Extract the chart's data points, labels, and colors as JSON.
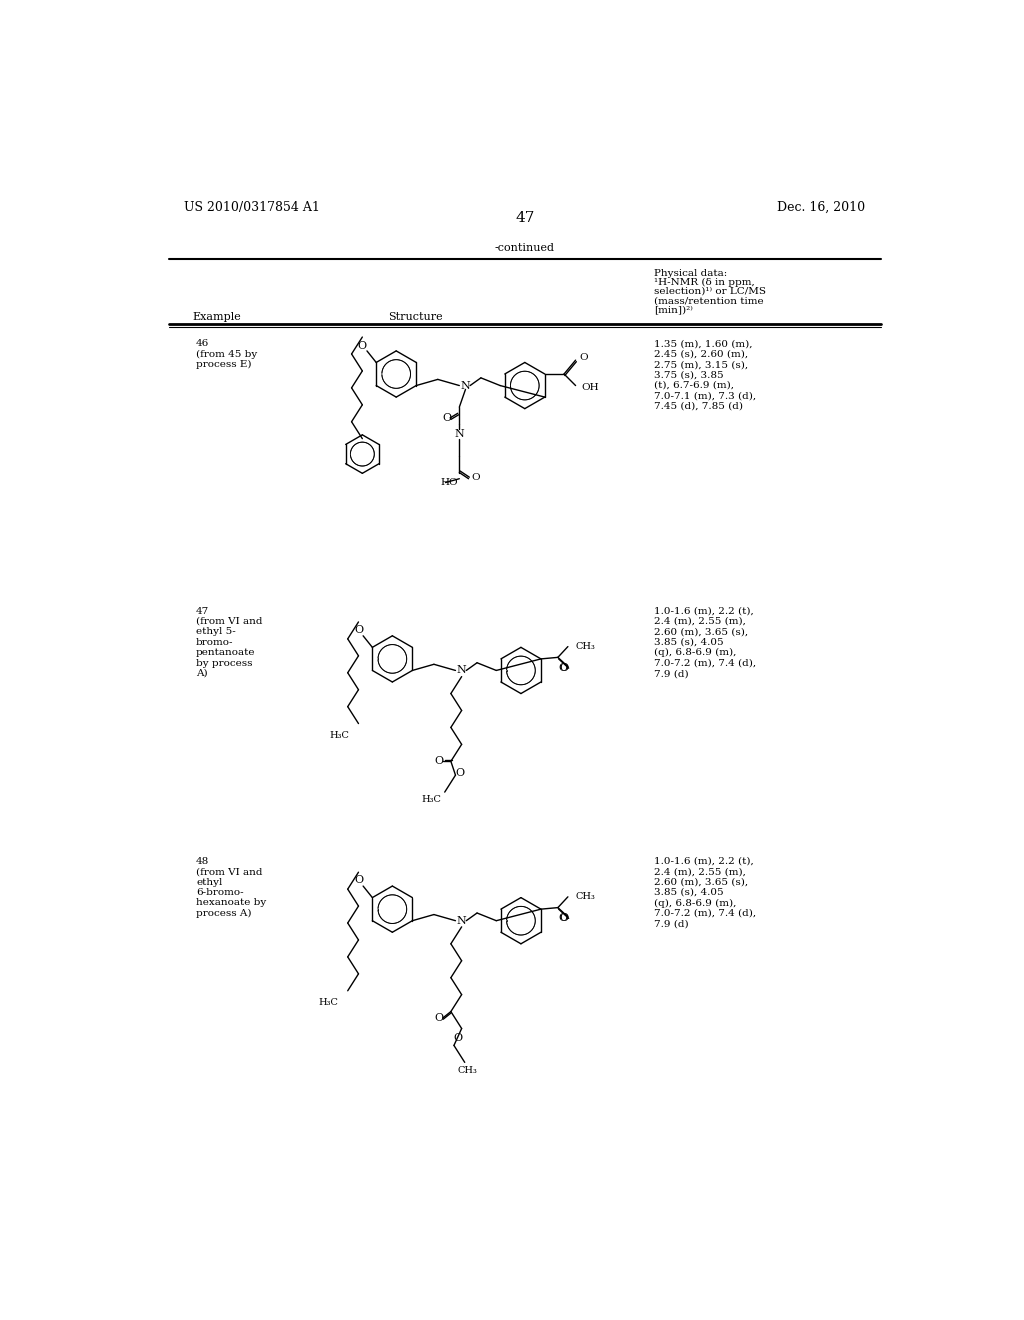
{
  "page_header_left": "US 2010/0317854 A1",
  "page_header_right": "Dec. 16, 2010",
  "page_number": "47",
  "continued_label": "-continued",
  "background_color": "#ffffff",
  "text_color": "#000000",
  "table_header": {
    "col1": "Example",
    "col2": "Structure",
    "col3_line1": "Physical data:",
    "col3_line2": "1H-NMR (δ in ppm,",
    "col3_line3": "selection)1) or LC/MS",
    "col3_line4": "(mass/retention time",
    "col3_line5": "[min])2)"
  },
  "rows": [
    {
      "example": "46\n(from 45 by\nprocess E)",
      "nmr": "1.35 (m), 1.60 (m),\n2.45 (s), 2.60 (m),\n2.75 (m), 3.15 (s),\n3.75 (s), 3.85\n(t), 6.7-6.9 (m),\n7.0-7.1 (m), 7.3 (d),\n7.45 (d), 7.85 (d)"
    },
    {
      "example": "47\n(from VI and\nethyl 5-\nbromo-\npentanoate\nby process\nA)",
      "nmr": "1.0-1.6 (m), 2.2 (t),\n2.4 (m), 2.55 (m),\n2.60 (m), 3.65 (s),\n3.85 (s), 4.05\n(q), 6.8-6.9 (m),\n7.0-7.2 (m), 7.4 (d),\n7.9 (d)"
    },
    {
      "example": "48\n(from VI and\nethyl\n6-bromo-\nhexanoate by\nprocess A)",
      "nmr": "1.0-1.6 (m), 2.2 (t),\n2.4 (m), 2.55 (m),\n2.60 (m), 3.65 (s),\n3.85 (s), 4.05\n(q), 6.8-6.9 (m),\n7.0-7.2 (m), 7.4 (d),\n7.9 (d)"
    }
  ]
}
